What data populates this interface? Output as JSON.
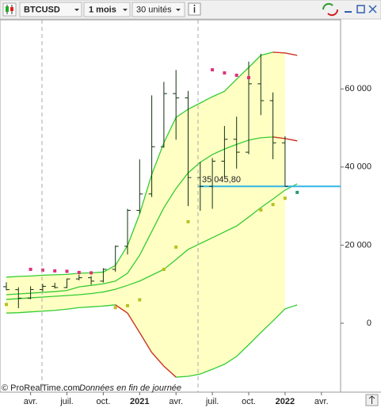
{
  "toolbar": {
    "symbol": "BTCUSD",
    "period": "1 mois",
    "units": "30 unités"
  },
  "chart_data": {
    "type": "ohlc",
    "categories": [
      null,
      null,
      "avr.",
      null,
      null,
      "juil.",
      null,
      null,
      "oct.",
      null,
      null,
      "2021",
      null,
      null,
      "avr.",
      null,
      null,
      "juil.",
      null,
      null,
      "oct.",
      null,
      null,
      "2022",
      null,
      null,
      "avr."
    ],
    "open": [
      9350,
      8600,
      6430,
      8630,
      9450,
      9140,
      11340,
      11650,
      10780,
      13800,
      19700,
      28900,
      33100,
      45200,
      58800,
      57700,
      37300,
      35050,
      41500,
      47100,
      43800,
      61300,
      57000,
      46200,
      null,
      null,
      null
    ],
    "high": [
      10500,
      9200,
      9470,
      10080,
      10380,
      11440,
      12480,
      12080,
      14100,
      19900,
      29300,
      41950,
      58350,
      61800,
      64850,
      59500,
      41300,
      42300,
      50500,
      52900,
      67000,
      69000,
      59100,
      47900,
      null,
      null,
      null
    ],
    "low": [
      8450,
      3850,
      6150,
      8130,
      8900,
      8980,
      10980,
      9880,
      10420,
      13200,
      17600,
      28100,
      32300,
      44950,
      47000,
      30000,
      28800,
      29300,
      37300,
      39600,
      43300,
      53300,
      42000,
      35000,
      null,
      null,
      null
    ],
    "close": [
      8600,
      6430,
      8630,
      9450,
      9140,
      11340,
      11650,
      10780,
      13800,
      19700,
      28900,
      33100,
      45200,
      58800,
      57700,
      37300,
      35050,
      41500,
      47100,
      43800,
      61300,
      57000,
      46200,
      35045.8,
      null,
      null,
      null
    ],
    "bar_color": "#123012",
    "lines": [
      {
        "values": [
          11800,
          12000,
          12100,
          12300,
          12400,
          12500,
          12800,
          12900,
          13100,
          14800,
          19900,
          28000,
          38100,
          46200,
          52700,
          54800,
          56400,
          58000,
          59400,
          62500,
          65500,
          68600,
          69400,
          69200,
          68600,
          null,
          null
        ]
      },
      {
        "values": [
          7300,
          7500,
          7700,
          7900,
          8100,
          8400,
          9300,
          9700,
          10100,
          10800,
          12800,
          17400,
          23500,
          29600,
          34500,
          38500,
          41200,
          43200,
          44600,
          45800,
          46900,
          47500,
          47700,
          47300,
          46700,
          null,
          null
        ]
      },
      {
        "values": [
          6100,
          6300,
          6500,
          6700,
          6900,
          7100,
          7300,
          7600,
          8000,
          8700,
          9700,
          10800,
          12300,
          13800,
          16300,
          18900,
          20400,
          21900,
          23400,
          24900,
          27200,
          29600,
          31800,
          34100,
          35700,
          null,
          null
        ]
      },
      {
        "values": [
          2600,
          2700,
          2900,
          3100,
          3300,
          3600,
          4000,
          4200,
          4400,
          4700,
          2600,
          -2400,
          -7500,
          -11000,
          -13800,
          -13600,
          -13000,
          -11800,
          -10500,
          -8500,
          -5500,
          -2400,
          600,
          3700,
          4700,
          null,
          null
        ]
      }
    ],
    "line_color": "#33cc33",
    "down_color": "#e02828",
    "fill_color": "#ffffc4",
    "sar": [
      {
        "color": "#e0307a",
        "values": [
          null,
          null,
          13800,
          13600,
          13400,
          13300,
          13000,
          12900,
          null,
          null,
          null,
          null,
          null,
          null,
          null,
          null,
          null,
          64900,
          64100,
          63500,
          62900,
          null,
          null,
          null,
          null,
          null,
          null
        ]
      },
      {
        "color": "#b8c020",
        "values": [
          4800,
          null,
          null,
          null,
          null,
          null,
          null,
          null,
          null,
          4000,
          4500,
          6000,
          null,
          13800,
          19500,
          26000,
          null,
          null,
          null,
          null,
          null,
          29000,
          30400,
          32000,
          null,
          null,
          null
        ]
      },
      {
        "color": "#2a9a7a",
        "values": [
          null,
          null,
          null,
          null,
          null,
          null,
          null,
          null,
          null,
          null,
          null,
          null,
          null,
          null,
          null,
          null,
          null,
          null,
          null,
          null,
          null,
          null,
          null,
          null,
          33500,
          null,
          null
        ]
      }
    ],
    "last_price": {
      "value": 35045.8,
      "label": "35 045,80",
      "color": "#33b5e5"
    },
    "ylim": [
      -17650,
      77700
    ],
    "yticks": [
      0,
      {
        "value": 20000,
        "label": "20 000"
      },
      {
        "value": 40000,
        "label": "40 000"
      },
      {
        "value": 60000,
        "label": "60 000"
      }
    ],
    "footer_source": "© ProRealTime.com",
    "footer_note": "Données en fin de journée"
  }
}
